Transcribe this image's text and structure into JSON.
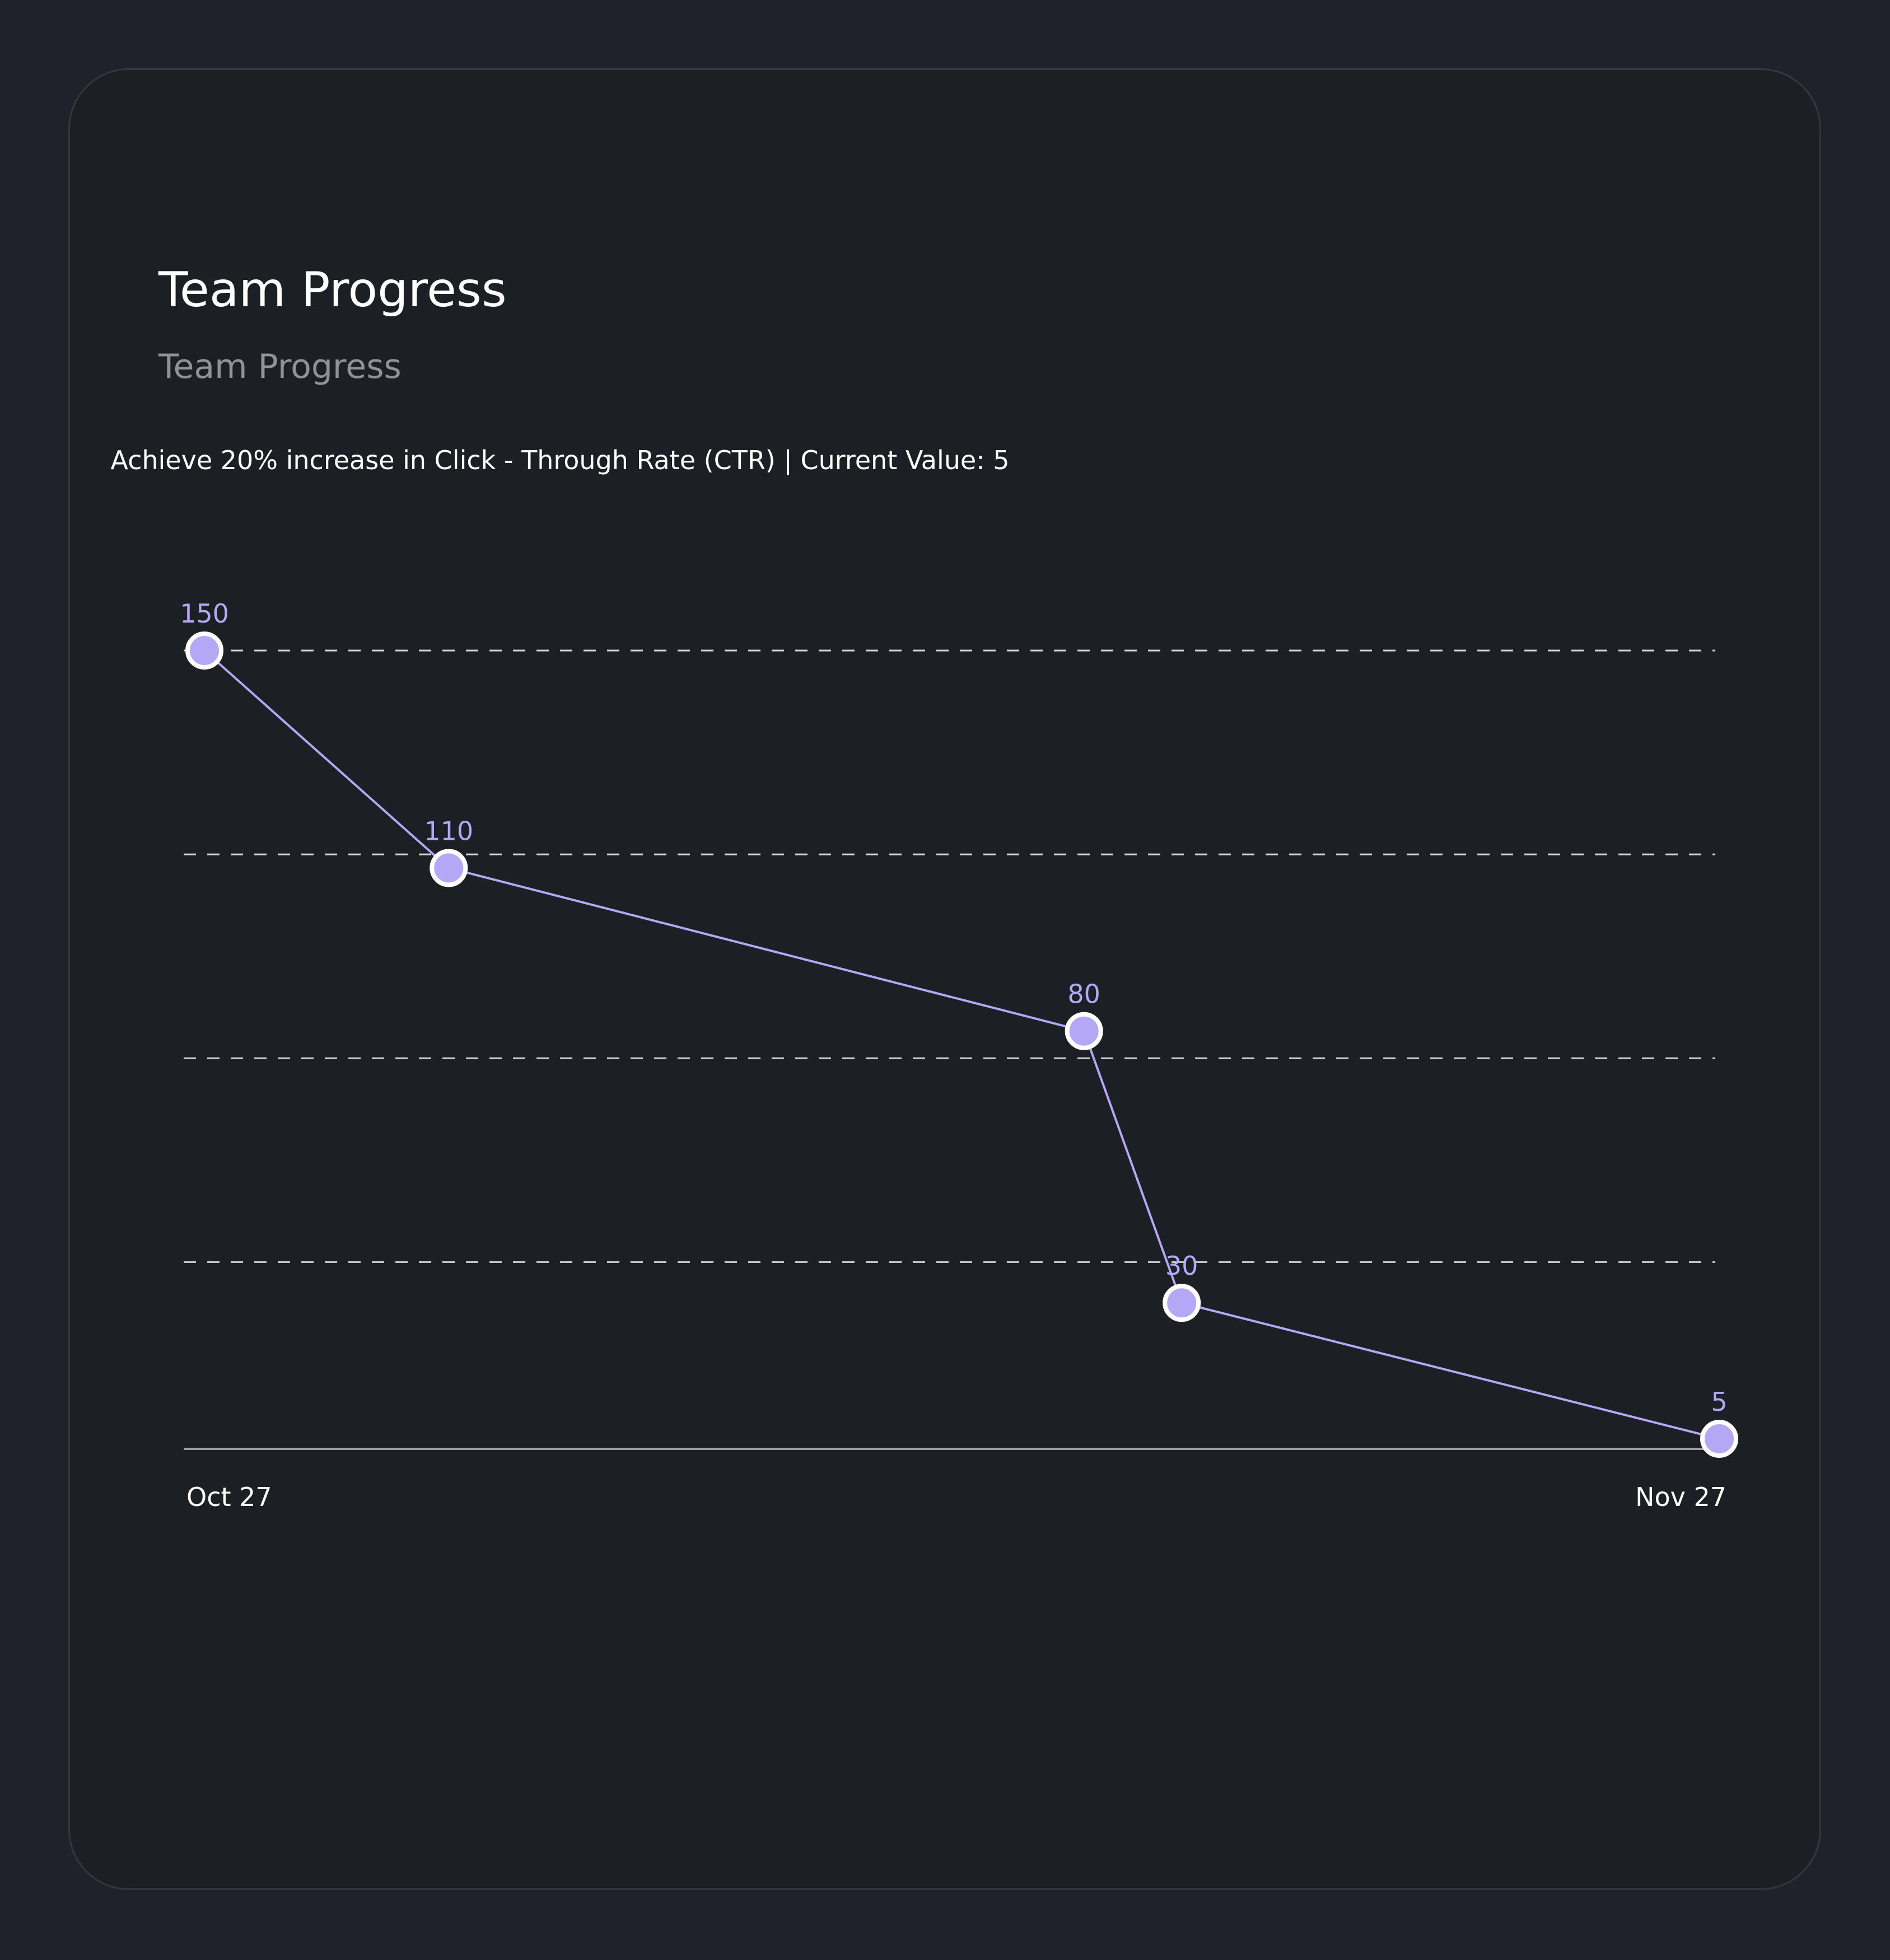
{
  "card": {
    "title": "Team Progress",
    "subtitle": "Team Progress"
  },
  "chart_data": {
    "type": "line",
    "title": "Achieve 20% increase in Click - Through Rate (CTR) | Current Value: 5",
    "xlabel": "",
    "ylabel": "",
    "x_ticks": [
      "Oct 27",
      "Nov 27"
    ],
    "x": [
      "2023-10-27",
      "2023-11-01",
      "2023-11-14",
      "2023-11-16",
      "2023-11-27"
    ],
    "series": [
      {
        "values": [
          150,
          110,
          80,
          30,
          5
        ]
      }
    ],
    "ylim": [
      0,
      160
    ],
    "grid": true,
    "colors": {
      "line": "#b4a7f5",
      "point_stroke": "#ffffff",
      "grid": "#d2d3d6",
      "axis": "#9b9da1"
    }
  }
}
